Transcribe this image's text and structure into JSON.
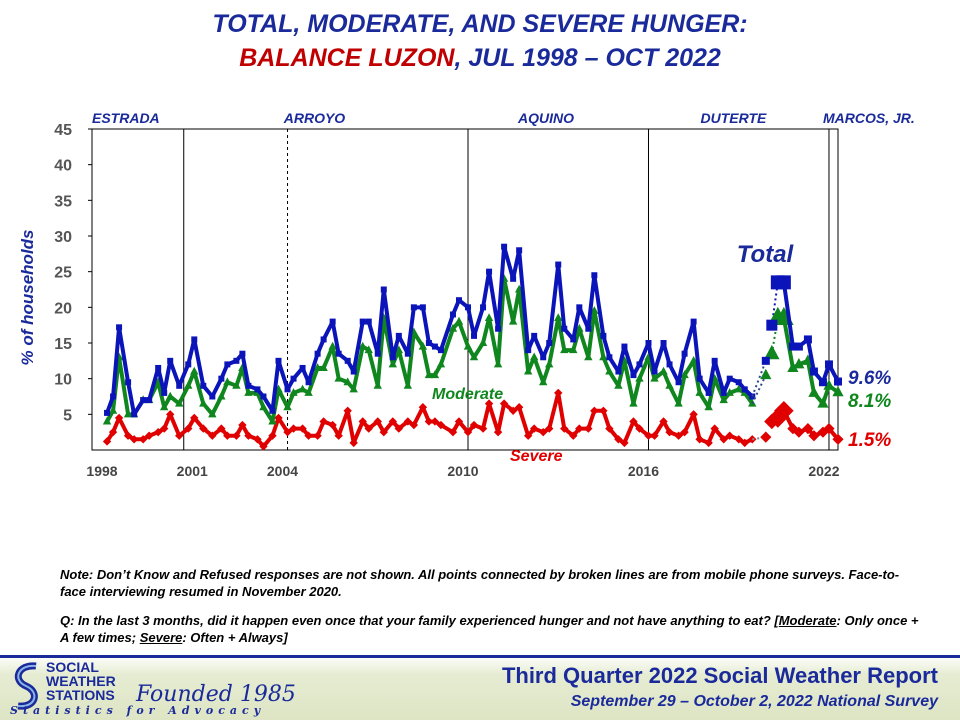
{
  "title": {
    "line1": "TOTAL, MODERATE, AND SEVERE HUNGER:",
    "line2_highlight": "BALANCE LUZON",
    "line2_rest": ", JUL 1998 – OCT 2022"
  },
  "notes": {
    "note1": "Note: Don’t Know and Refused responses are not shown. All points connected by broken lines are from mobile phone surveys. Face-to-face interviewing resumed in November 2020.",
    "q_prefix": "Q: In the last 3 months, did it happen even once that your family experienced hunger and not have anything to eat? [",
    "q_mod_label": "Moderate",
    "q_mod_text": ": Only once + A few times; ",
    "q_sev_label": "Severe",
    "q_sev_text": ": Often + Always]"
  },
  "footer": {
    "report_title": "Third Quarter 2022 Social Weather Report",
    "report_subtitle": "September 29 – October 2, 2022 National Survey",
    "logo_line1": "SOCIAL",
    "logo_line2": "WEATHER",
    "logo_line3": "STATIONS",
    "logo_founded": "Founded 1985",
    "logo_tagline": "Statistics for Advocacy"
  },
  "chart_data": {
    "type": "line",
    "ylabel": "% of households",
    "xlim": [
      1998.0,
      2022.8
    ],
    "ylim": [
      0,
      45
    ],
    "yticks": [
      5,
      10,
      15,
      20,
      25,
      30,
      35,
      40,
      45
    ],
    "xtick_labels": [
      {
        "x": 1998,
        "label": "1998"
      },
      {
        "x": 2001,
        "label": "2001"
      },
      {
        "x": 2004,
        "label": "2004"
      },
      {
        "x": 2010,
        "label": "2010"
      },
      {
        "x": 2016,
        "label": "2016"
      },
      {
        "x": 2022,
        "label": "2022"
      }
    ],
    "administrations": [
      {
        "name": "ESTRADA",
        "start": 1998.5
      },
      {
        "name": "ARROYO",
        "start": 2001.05,
        "dashed_until": 2004.5
      },
      {
        "name": "AQUINO",
        "start": 2010.5
      },
      {
        "name": "DUTERTE",
        "start": 2016.5
      },
      {
        "name": "MARCOS, JR.",
        "start": 2022.5
      }
    ],
    "series_labels": {
      "total": "Total",
      "moderate": "Moderate",
      "severe": "Severe"
    },
    "end_labels": {
      "total": "9.6%",
      "moderate": "8.1%",
      "severe": "1.5%"
    },
    "colors": {
      "total": "#0b14b8",
      "moderate": "#10861e",
      "severe": "#e00000",
      "phone": "#2a4a8a"
    },
    "x": [
      1998.5,
      1998.7,
      1998.9,
      1999.2,
      1999.4,
      1999.7,
      1999.9,
      2000.2,
      2000.4,
      2000.6,
      2000.9,
      2001.2,
      2001.4,
      2001.7,
      2002.0,
      2002.3,
      2002.5,
      2002.8,
      2003.0,
      2003.2,
      2003.5,
      2003.7,
      2004.0,
      2004.2,
      2004.5,
      2004.7,
      2005.0,
      2005.2,
      2005.5,
      2005.7,
      2006.0,
      2006.2,
      2006.5,
      2006.7,
      2007.0,
      2007.2,
      2007.5,
      2007.7,
      2008.0,
      2008.2,
      2008.5,
      2008.7,
      2009.0,
      2009.2,
      2009.4,
      2009.6,
      2010.0,
      2010.2,
      2010.5,
      2010.7,
      2011.0,
      2011.2,
      2011.5,
      2011.7,
      2012.0,
      2012.2,
      2012.5,
      2012.7,
      2013.0,
      2013.2,
      2013.5,
      2013.7,
      2014.0,
      2014.2,
      2014.5,
      2014.7,
      2015.0,
      2015.2,
      2015.5,
      2015.7,
      2016.0,
      2016.2,
      2016.5,
      2016.7,
      2017.0,
      2017.2,
      2017.5,
      2017.7,
      2018.0,
      2018.2,
      2018.5,
      2018.7,
      2019.0,
      2019.2,
      2019.5,
      2019.7,
      2019.95
    ],
    "total": [
      5.2,
      7.5,
      17.2,
      9.5,
      5,
      7,
      7,
      11.5,
      8,
      12.5,
      9,
      12,
      15.5,
      9,
      7.5,
      10,
      12,
      12.5,
      13.5,
      9,
      8.5,
      7.5,
      5.5,
      12.5,
      8.5,
      10,
      11.5,
      9.5,
      13.5,
      15.5,
      18,
      13.5,
      12.5,
      11,
      18,
      18,
      13.5,
      22.5,
      13,
      16,
      13.5,
      20,
      20,
      15,
      14.5,
      14,
      19,
      21,
      20,
      16,
      20,
      25,
      17,
      28.5,
      24,
      28,
      14,
      16,
      13,
      15,
      26,
      17,
      15.5,
      20,
      17,
      24.5,
      16,
      13,
      11,
      14.5,
      10.5,
      12,
      15,
      11,
      15,
      12,
      9.5,
      13.5,
      18,
      10,
      8,
      12.5,
      8,
      10,
      9.5,
      8.5,
      7.5
    ],
    "moderate": [
      4,
      5.5,
      13,
      5,
      5,
      7,
      7,
      9.5,
      6,
      7.5,
      6.5,
      9,
      11,
      6.5,
      5,
      7.5,
      9.5,
      9,
      11.5,
      8,
      8,
      6,
      4,
      8.5,
      6,
      8,
      8.5,
      8,
      11.5,
      11.5,
      14.5,
      10,
      9.5,
      8.5,
      14.5,
      14,
      9,
      18.5,
      12,
      14,
      9,
      16.5,
      14.5,
      10.5,
      10.5,
      12,
      17,
      18,
      14.5,
      13,
      15,
      18.5,
      12,
      24,
      18,
      22.5,
      11,
      13,
      9.5,
      12,
      18.5,
      14,
      14,
      17,
      13,
      19.5,
      13,
      11,
      9,
      12.5,
      6.5,
      10,
      13,
      10,
      11,
      9,
      6.5,
      10.5,
      12.5,
      8,
      6,
      10,
      7,
      8,
      8.5,
      8,
      6.5
    ],
    "severe": [
      1.2,
      2.5,
      4.5,
      2,
      1.5,
      1.5,
      2,
      2.5,
      3,
      5,
      2,
      3,
      4.5,
      3,
      2,
      3,
      2,
      2,
      3.5,
      2,
      1.5,
      0.5,
      2,
      4.5,
      2.5,
      3,
      3,
      2,
      2,
      4,
      3.5,
      2,
      5.5,
      1,
      4,
      3,
      4,
      2.5,
      4,
      3,
      4,
      3.5,
      6,
      4,
      4,
      3.5,
      2.5,
      4,
      2.5,
      3.5,
      3,
      6.5,
      2.5,
      6.5,
      5.5,
      6,
      2,
      3,
      2.5,
      3,
      8,
      3,
      2,
      3,
      3,
      5.5,
      5.5,
      3,
      1.5,
      1,
      4,
      3,
      2,
      2,
      4,
      2.5,
      2,
      2.5,
      5,
      1.5,
      1,
      3,
      1.5,
      2,
      1.5,
      1,
      1.5
    ],
    "phone": {
      "total": {
        "x": [
          2020.8,
          2021.0
        ],
        "values": [
          23.5,
          23.5
        ]
      },
      "moderate": {
        "x": [
          2020.8,
          2021.0
        ],
        "values": [
          18.5,
          18.5
        ]
      },
      "severe": {
        "x": [
          2020.8,
          2021.0
        ],
        "values": [
          4.5,
          5.5
        ]
      }
    },
    "recent_x": [
      2020.4,
      2020.6,
      2020.8,
      2021.0,
      2021.3,
      2021.5,
      2021.8,
      2022.0,
      2022.3,
      2022.5,
      2022.8
    ],
    "recent_total": [
      12.5,
      17.5,
      23.5,
      23.5,
      14.5,
      14.5,
      15.5,
      11,
      9.5,
      12,
      9.6
    ],
    "recent_moderate": [
      10.5,
      13.5,
      18.5,
      18.5,
      11.5,
      12,
      12.5,
      8,
      6.5,
      9,
      8.1
    ],
    "recent_severe": [
      1.8,
      4,
      4.5,
      5.5,
      3,
      2.5,
      3,
      2,
      2.5,
      3,
      1.5
    ],
    "recent_marker_sizes": [
      8,
      11,
      14,
      14,
      8,
      8,
      8,
      8,
      8,
      8,
      8
    ]
  }
}
